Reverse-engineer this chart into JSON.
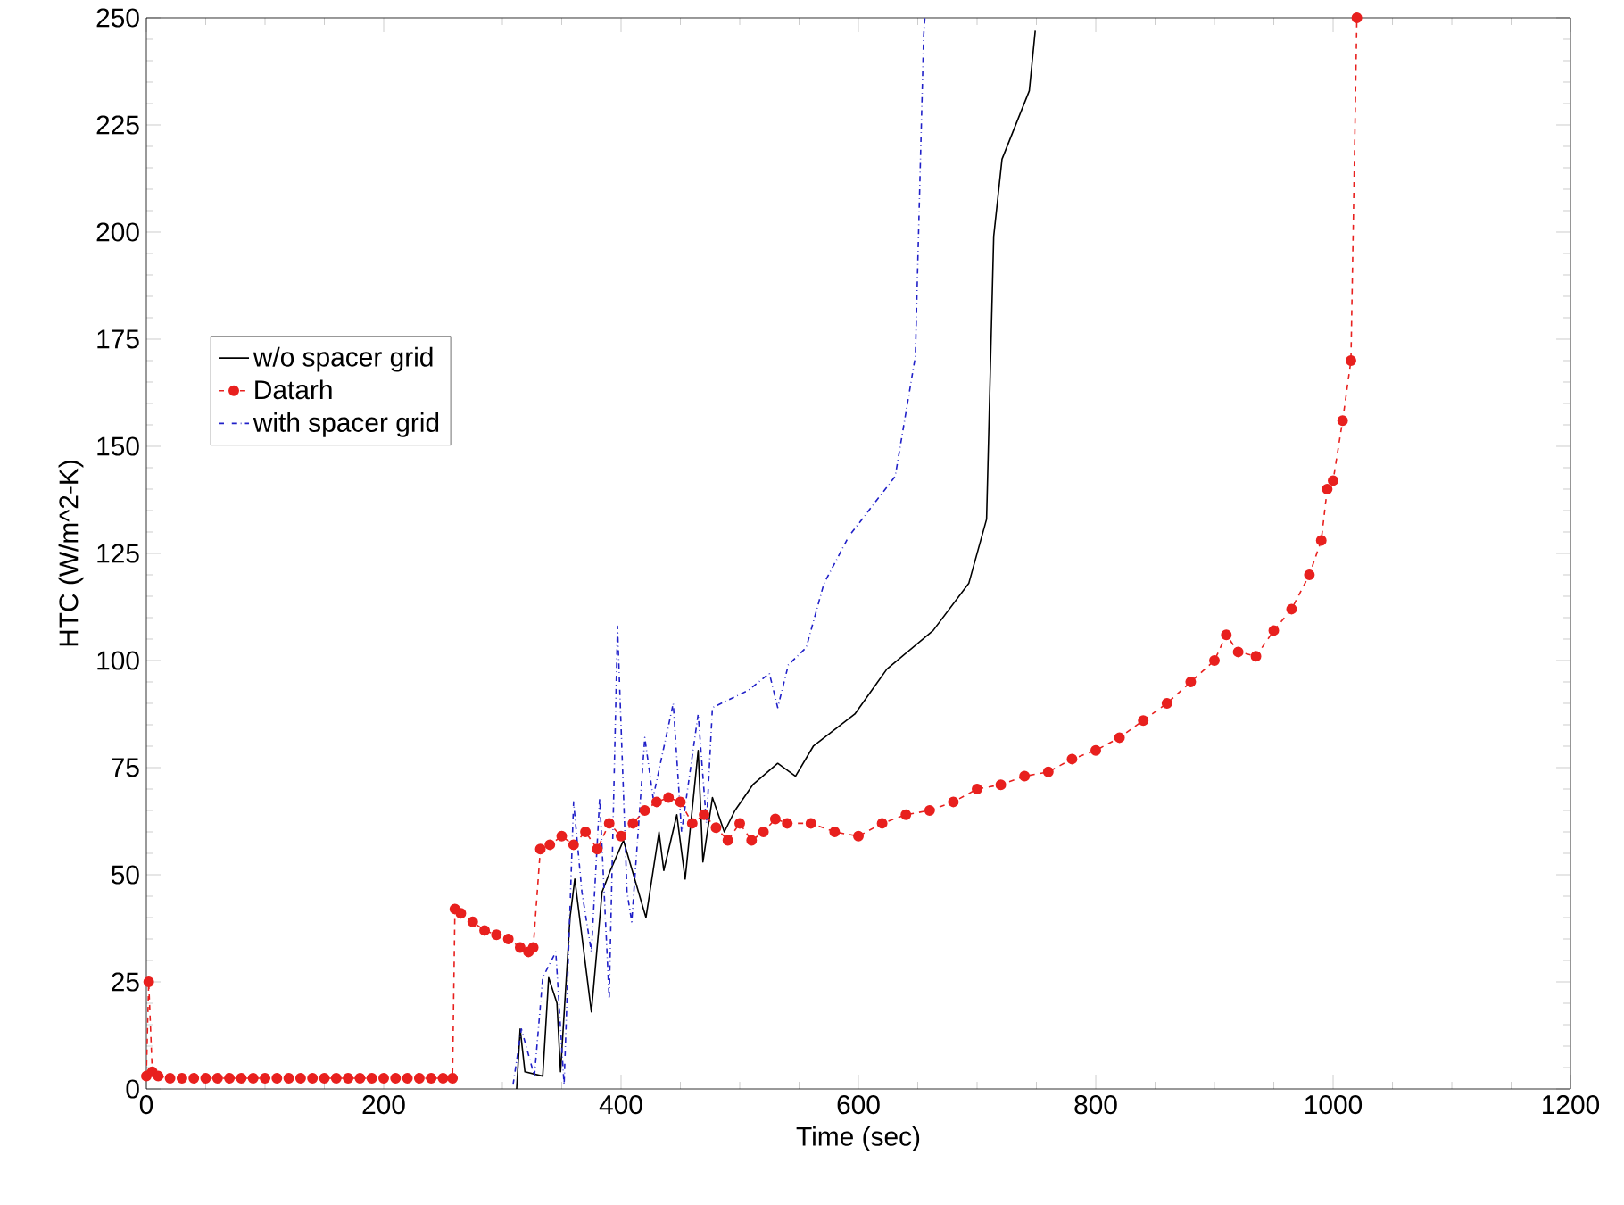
{
  "chart_data": {
    "type": "line",
    "xlabel": "Time (sec)",
    "ylabel": "HTC (W/m^2-K)",
    "xlim": [
      0,
      1200
    ],
    "ylim": [
      0,
      250
    ],
    "xticks": [
      0,
      200,
      400,
      600,
      800,
      1000,
      1200
    ],
    "yticks": [
      0,
      25,
      50,
      75,
      100,
      125,
      150,
      175,
      200,
      225,
      250
    ],
    "grid": false,
    "legend": "left",
    "series": [
      {
        "name": "w/o spacer grid",
        "color": "#000000",
        "line_style": "solid",
        "marker": "none",
        "x": [
          312,
          315,
          319,
          334,
          339,
          346,
          349,
          357,
          361,
          375,
          384,
          391,
          402,
          421,
          432,
          436,
          447,
          454,
          465,
          469,
          477,
          487,
          496,
          511,
          532,
          547,
          562,
          597,
          624,
          663,
          693,
          708,
          714,
          721,
          744,
          749
        ],
        "values": [
          0,
          14,
          4,
          3,
          26,
          20,
          4,
          40,
          49,
          18,
          46,
          51,
          58,
          40,
          60,
          51,
          64,
          49,
          79,
          53,
          68,
          60,
          65,
          71,
          76,
          73,
          80,
          87.5,
          98,
          107,
          118,
          133,
          199,
          217,
          233,
          247
        ]
      },
      {
        "name": "Datarh",
        "color": "#e8201e",
        "line_style": "dashed",
        "marker": "circle",
        "x": [
          0,
          2,
          5,
          10,
          20,
          30,
          40,
          50,
          60,
          70,
          80,
          90,
          100,
          110,
          120,
          130,
          140,
          150,
          160,
          170,
          180,
          190,
          200,
          210,
          220,
          230,
          240,
          250,
          258,
          260,
          265,
          275,
          285,
          295,
          305,
          315,
          322,
          326,
          332,
          340,
          350,
          360,
          370,
          380,
          390,
          400,
          410,
          420,
          430,
          440,
          450,
          460,
          470,
          480,
          490,
          500,
          510,
          520,
          530,
          540,
          560,
          580,
          600,
          620,
          640,
          660,
          680,
          700,
          720,
          740,
          760,
          780,
          800,
          820,
          840,
          860,
          880,
          900,
          910,
          920,
          935,
          950,
          965,
          980,
          990,
          995,
          1000,
          1008,
          1015,
          1020
        ],
        "values": [
          3,
          25,
          4,
          3,
          2.5,
          2.5,
          2.5,
          2.5,
          2.5,
          2.5,
          2.5,
          2.5,
          2.5,
          2.5,
          2.5,
          2.5,
          2.5,
          2.5,
          2.5,
          2.5,
          2.5,
          2.5,
          2.5,
          2.5,
          2.5,
          2.5,
          2.5,
          2.5,
          2.5,
          42,
          41,
          39,
          37,
          36,
          35,
          33,
          32,
          33,
          56,
          57,
          59,
          57,
          60,
          56,
          62,
          59,
          62,
          65,
          67,
          68,
          67,
          62,
          64,
          61,
          58,
          62,
          58,
          60,
          63,
          62,
          62,
          60,
          59,
          62,
          64,
          65,
          67,
          70,
          71,
          73,
          74,
          77,
          79,
          82,
          86,
          90,
          95,
          100,
          106,
          102,
          101,
          107,
          112,
          120,
          128,
          140,
          142,
          156,
          170,
          250
        ]
      },
      {
        "name": "with spacer grid",
        "color": "#2020c8",
        "line_style": "dashdot",
        "marker": "none",
        "x": [
          309,
          316,
          327,
          334,
          345,
          352,
          360,
          367,
          375,
          382,
          390,
          397,
          405,
          409,
          420,
          427,
          444,
          451,
          465,
          472,
          477,
          507,
          525,
          532,
          541,
          556,
          571,
          592,
          631,
          648,
          655,
          656
        ],
        "values": [
          1,
          14,
          3,
          26,
          32,
          1,
          67,
          46,
          32,
          68,
          21,
          108,
          46,
          39,
          82,
          68,
          90,
          60,
          87.5,
          62,
          89,
          93,
          97,
          89,
          99,
          103,
          118,
          129,
          143,
          171,
          246,
          250
        ]
      }
    ]
  }
}
